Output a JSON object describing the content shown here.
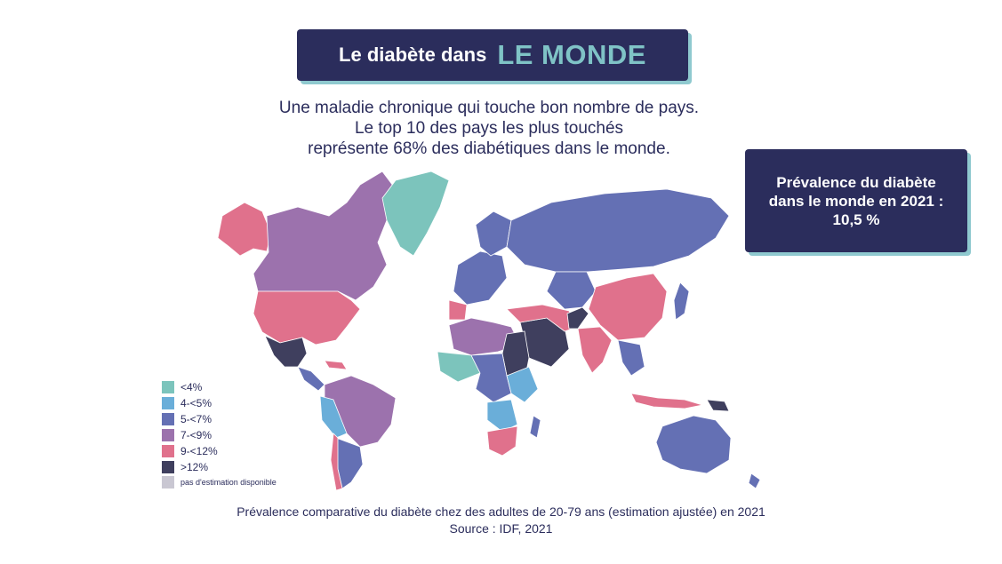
{
  "header": {
    "title_part1": "Le diabète dans",
    "title_part2": "LE MONDE"
  },
  "intro": {
    "line1": "Une maladie chronique qui touche bon nombre de pays.",
    "line2": "Le top 10 des pays les plus touchés",
    "line3": "représente 68% des diabétiques dans le monde."
  },
  "stat": {
    "line1": "Prévalence du diabète",
    "line2": "dans le monde en 2021 :",
    "line3": "10,5 %"
  },
  "legend": {
    "items": [
      {
        "label": "<4%",
        "color": "#7cc4bc"
      },
      {
        "label": "4-<5%",
        "color": "#6aaed9"
      },
      {
        "label": "5-<7%",
        "color": "#6470b4"
      },
      {
        "label": "7-<9%",
        "color": "#9c72ad"
      },
      {
        "label": "9-<12%",
        "color": "#e0718c"
      },
      {
        "label": ">12%",
        "color": "#3f3f5e"
      },
      {
        "label": "pas d'estimation disponible",
        "color": "#c9c7d2"
      }
    ]
  },
  "caption": {
    "line1": "Prévalence comparative du diabète chez des adultes de 20-79 ans (estimation ajustée) en 2021",
    "line2": "Source : IDF, 2021"
  },
  "colors": {
    "navy": "#2b2d5c",
    "teal_accent": "#7fc3c6"
  }
}
